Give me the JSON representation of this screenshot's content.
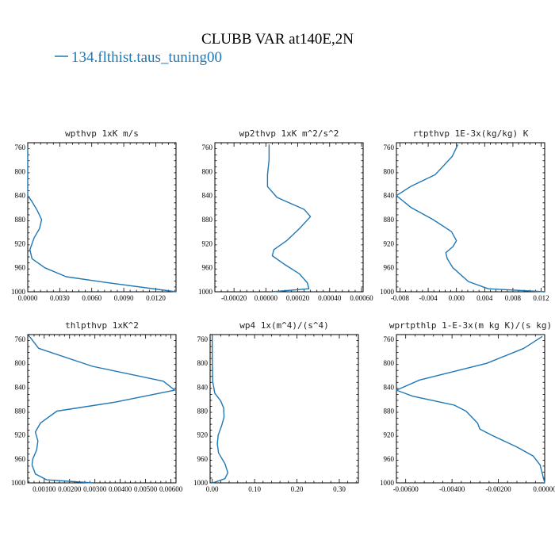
{
  "figure": {
    "title": "CLUBB VAR at140E,2N",
    "legend_label": "134.flthist.taus_tuning00",
    "line_color": "#1f77b4"
  },
  "chart_data": [
    {
      "type": "line",
      "title": "wpthvp  1xK m/s",
      "xlim": [
        0.0,
        0.0139
      ],
      "ylim": [
        1000,
        752
      ],
      "xticks": [
        "0.0000",
        "0.0030",
        "0.0060",
        "0.0090",
        "0.0120"
      ],
      "xtick_values": [
        0.0,
        0.003,
        0.006,
        0.009,
        0.012
      ],
      "yticks": [
        "760",
        "800",
        "840",
        "880",
        "920",
        "960",
        "1000"
      ],
      "ytick_values": [
        760,
        800,
        840,
        880,
        920,
        960,
        1000
      ],
      "series": [
        {
          "x": [
            0.0,
            0.0,
            0.0,
            0.0,
            0.0,
            0.0004,
            0.0009,
            0.0013,
            0.0011,
            0.0006,
            0.0002,
            0.0004,
            0.0016,
            0.0036,
            0.0075,
            0.0139
          ],
          "y": [
            760,
            780,
            800,
            820,
            840,
            850,
            865,
            880,
            895,
            910,
            930,
            945,
            960,
            975,
            985,
            1000
          ]
        }
      ]
    },
    {
      "type": "line",
      "title": "wp2thvp  1xK m^2/s^2",
      "xlim": [
        -0.00032,
        0.00061
      ],
      "ylim": [
        1000,
        752
      ],
      "xticks": [
        "-0.00020",
        "0.00000",
        "0.00020",
        "0.00040",
        "0.00060"
      ],
      "xtick_values": [
        -0.0002,
        0.0,
        0.0002,
        0.0004,
        0.0006
      ],
      "yticks": [
        "760",
        "800",
        "840",
        "880",
        "920",
        "960",
        "1000"
      ],
      "ytick_values": [
        760,
        800,
        840,
        880,
        920,
        960,
        1000
      ],
      "series": [
        {
          "x": [
            2e-05,
            2e-05,
            1e-05,
            1e-05,
            7e-05,
            0.00024,
            0.00028,
            0.00021,
            0.00013,
            5e-05,
            4e-05,
            0.00012,
            0.00021,
            0.00026,
            0.00027,
            4e-05
          ],
          "y": [
            755,
            780,
            805,
            825,
            843,
            863,
            875,
            895,
            915,
            930,
            940,
            955,
            970,
            985,
            995,
            1000
          ]
        }
      ]
    },
    {
      "type": "line",
      "title": "rtpthvp  1E-3x(kg/kg) K",
      "xlim": [
        -0.0085,
        0.0125
      ],
      "ylim": [
        1000,
        752
      ],
      "xticks": [
        "-0.008",
        "-0.004",
        "0.000",
        "0.004",
        "0.008",
        "0.012"
      ],
      "xtick_values": [
        -0.008,
        -0.004,
        0.0,
        0.004,
        0.008,
        0.012
      ],
      "yticks": [
        "760",
        "800",
        "840",
        "880",
        "920",
        "960",
        "1000"
      ],
      "ytick_values": [
        760,
        800,
        840,
        880,
        920,
        960,
        1000
      ],
      "series": [
        {
          "x": [
            0.0002,
            -0.0006,
            -0.003,
            -0.0065,
            -0.0085,
            -0.0064,
            -0.0033,
            -0.0007,
            0.0,
            -0.0005,
            -0.0015,
            -0.0013,
            -0.0005,
            0.0017,
            0.0045,
            0.0125
          ],
          "y": [
            755,
            775,
            805,
            825,
            840,
            860,
            880,
            900,
            915,
            925,
            935,
            945,
            960,
            983,
            995,
            1000
          ]
        }
      ]
    },
    {
      "type": "line",
      "title": "thlpthvp  1xK^2",
      "xlim": [
        0.00035,
        0.0062
      ],
      "ylim": [
        1000,
        752
      ],
      "xticks": [
        "0.00100",
        "0.00200",
        "0.00300",
        "0.00400",
        "0.00500",
        "0.00600"
      ],
      "xtick_values": [
        0.001,
        0.002,
        0.003,
        0.004,
        0.005,
        0.006
      ],
      "yticks": [
        "760",
        "800",
        "840",
        "880",
        "920",
        "960",
        "1000"
      ],
      "ytick_values": [
        760,
        800,
        840,
        880,
        920,
        960,
        1000
      ],
      "series": [
        {
          "x": [
            0.00042,
            0.00078,
            0.0029,
            0.0057,
            0.00615,
            0.0038,
            0.0015,
            0.00085,
            0.00065,
            0.00075,
            0.0007,
            0.00055,
            0.00052,
            0.00065,
            0.0011,
            0.0029
          ],
          "y": [
            755,
            775,
            805,
            830,
            845,
            865,
            880,
            900,
            915,
            930,
            945,
            960,
            970,
            985,
            995,
            1000
          ]
        }
      ]
    },
    {
      "type": "line",
      "title": "wp4   1x(m^4)/(s^4)",
      "xlim": [
        -0.005,
        0.345
      ],
      "ylim": [
        1000,
        752
      ],
      "xticks": [
        "0.00",
        "0.10",
        "0.20",
        "0.30"
      ],
      "xtick_values": [
        0.0,
        0.1,
        0.2,
        0.3
      ],
      "yticks": [
        "760",
        "800",
        "840",
        "880",
        "920",
        "960",
        "1000"
      ],
      "ytick_values": [
        760,
        800,
        840,
        880,
        920,
        960,
        1000
      ],
      "series": [
        {
          "x": [
            0.0,
            0.0,
            0.001,
            0.006,
            0.02,
            0.027,
            0.028,
            0.022,
            0.014,
            0.012,
            0.015,
            0.03,
            0.037,
            0.03,
            0.01,
            0.0
          ],
          "y": [
            755,
            790,
            830,
            850,
            863,
            875,
            890,
            905,
            920,
            935,
            950,
            968,
            983,
            993,
            998,
            1000
          ]
        }
      ]
    },
    {
      "type": "line",
      "title": "wprtpthlp  1-E-3x(m kg K)/(s kg)",
      "xlim": [
        -0.0064,
        0.0
      ],
      "ylim": [
        1000,
        752
      ],
      "xticks": [
        "-0.00600",
        "-0.00400",
        "-0.00200",
        "0.00000"
      ],
      "xtick_values": [
        -0.006,
        -0.004,
        -0.002,
        0.0
      ],
      "yticks": [
        "760",
        "800",
        "840",
        "880",
        "920",
        "960",
        "1000"
      ],
      "ytick_values": [
        760,
        800,
        840,
        880,
        920,
        960,
        1000
      ],
      "series": [
        {
          "x": [
            -0.0001,
            -0.0009,
            -0.0025,
            -0.0054,
            -0.0064,
            -0.0057,
            -0.0039,
            -0.0034,
            -0.0029,
            -0.0028,
            -0.0023,
            -0.0012,
            -0.0005,
            -0.0002,
            -0.0001,
            0.0
          ],
          "y": [
            755,
            775,
            800,
            828,
            845,
            855,
            870,
            880,
            900,
            910,
            920,
            940,
            955,
            970,
            985,
            1000
          ]
        }
      ]
    }
  ]
}
